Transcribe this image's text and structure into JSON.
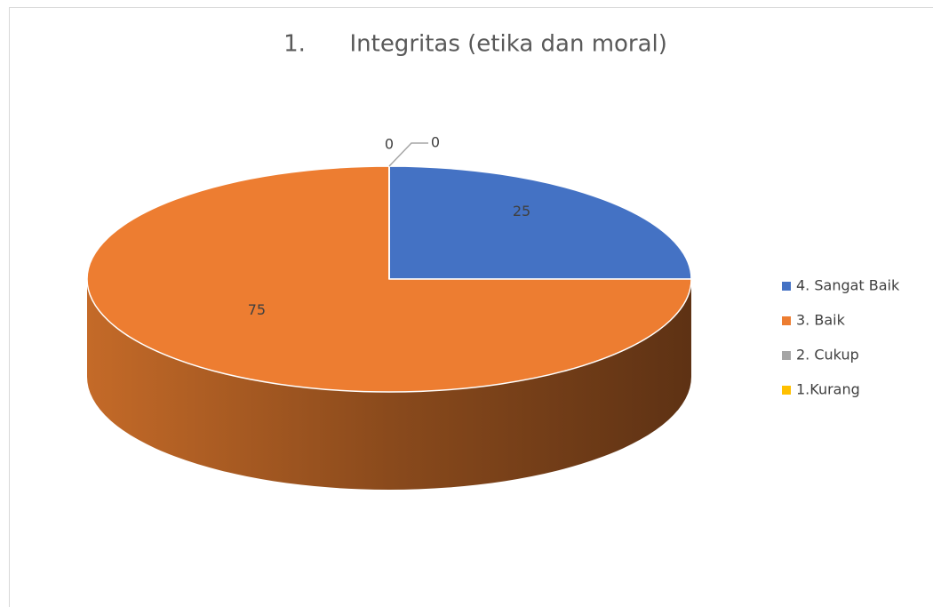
{
  "chart_data": {
    "type": "pie",
    "title": "1.      Integritas (etika dan moral)",
    "categories": [
      "4. Sangat Baik",
      "3. Baik",
      "2. Cukup",
      "1.Kurang"
    ],
    "values": [
      25,
      75,
      0,
      0
    ],
    "colors": [
      "#4472c4",
      "#ed7d31",
      "#a5a5a5",
      "#ffc000"
    ],
    "legend": "right"
  }
}
